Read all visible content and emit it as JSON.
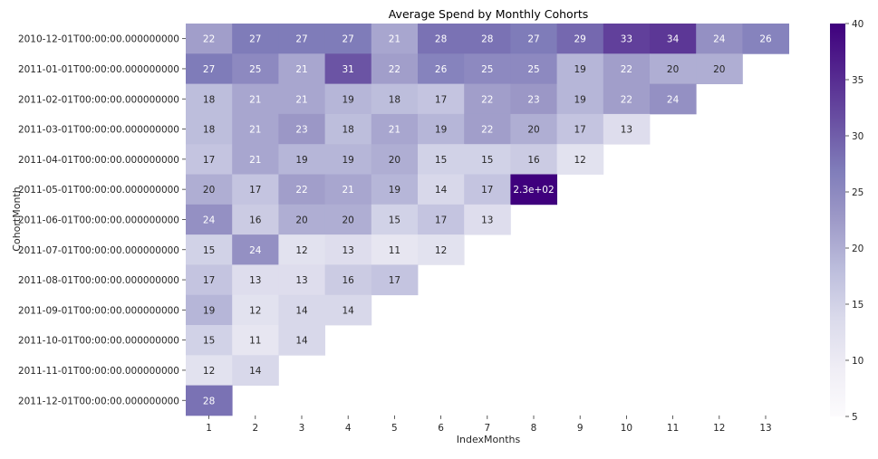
{
  "chart_data": {
    "type": "heatmap",
    "title": "Average Spend by Monthly Cohorts",
    "xlabel": "IndexMonths",
    "ylabel": "CohortMonth",
    "x_categories": [
      "1",
      "2",
      "3",
      "4",
      "5",
      "6",
      "7",
      "8",
      "9",
      "10",
      "11",
      "12",
      "13"
    ],
    "y_categories": [
      "2010-12-01T00:00:00.000000000",
      "2011-01-01T00:00:00.000000000",
      "2011-02-01T00:00:00.000000000",
      "2011-03-01T00:00:00.000000000",
      "2011-04-01T00:00:00.000000000",
      "2011-05-01T00:00:00.000000000",
      "2011-06-01T00:00:00.000000000",
      "2011-07-01T00:00:00.000000000",
      "2011-08-01T00:00:00.000000000",
      "2011-09-01T00:00:00.000000000",
      "2011-10-01T00:00:00.000000000",
      "2011-11-01T00:00:00.000000000",
      "2011-12-01T00:00:00.000000000"
    ],
    "values": [
      [
        22,
        27,
        27,
        27,
        21,
        28,
        28,
        27,
        29,
        33,
        34,
        24,
        26
      ],
      [
        27,
        25,
        21,
        31,
        22,
        26,
        25,
        25,
        19,
        22,
        20,
        20,
        null
      ],
      [
        18,
        21,
        21,
        19,
        18,
        17,
        22,
        23,
        19,
        22,
        24,
        null,
        null
      ],
      [
        18,
        21,
        23,
        18,
        21,
        19,
        22,
        20,
        17,
        13,
        null,
        null,
        null
      ],
      [
        17,
        21,
        19,
        19,
        20,
        15,
        15,
        16,
        12,
        null,
        null,
        null,
        null
      ],
      [
        20,
        17,
        22,
        21,
        19,
        14,
        17,
        230,
        null,
        null,
        null,
        null,
        null
      ],
      [
        24,
        16,
        20,
        20,
        15,
        17,
        13,
        null,
        null,
        null,
        null,
        null,
        null
      ],
      [
        15,
        24,
        12,
        13,
        11,
        12,
        null,
        null,
        null,
        null,
        null,
        null,
        null
      ],
      [
        17,
        13,
        13,
        16,
        17,
        null,
        null,
        null,
        null,
        null,
        null,
        null,
        null
      ],
      [
        19,
        12,
        14,
        14,
        null,
        null,
        null,
        null,
        null,
        null,
        null,
        null,
        null
      ],
      [
        15,
        11,
        14,
        null,
        null,
        null,
        null,
        null,
        null,
        null,
        null,
        null,
        null
      ],
      [
        12,
        14,
        null,
        null,
        null,
        null,
        null,
        null,
        null,
        null,
        null,
        null,
        null
      ],
      [
        28,
        null,
        null,
        null,
        null,
        null,
        null,
        null,
        null,
        null,
        null,
        null,
        null
      ]
    ],
    "cell_labels": [
      [
        "22",
        "27",
        "27",
        "27",
        "21",
        "28",
        "28",
        "27",
        "29",
        "33",
        "34",
        "24",
        "26"
      ],
      [
        "27",
        "25",
        "21",
        "31",
        "22",
        "26",
        "25",
        "25",
        "19",
        "22",
        "20",
        "20",
        ""
      ],
      [
        "18",
        "21",
        "21",
        "19",
        "18",
        "17",
        "22",
        "23",
        "19",
        "22",
        "24",
        "",
        ""
      ],
      [
        "18",
        "21",
        "23",
        "18",
        "21",
        "19",
        "22",
        "20",
        "17",
        "13",
        "",
        "",
        ""
      ],
      [
        "17",
        "21",
        "19",
        "19",
        "20",
        "15",
        "15",
        "16",
        "12",
        "",
        "",
        "",
        ""
      ],
      [
        "20",
        "17",
        "22",
        "21",
        "19",
        "14",
        "17",
        "2.3e+02",
        "",
        "",
        "",
        "",
        ""
      ],
      [
        "24",
        "16",
        "20",
        "20",
        "15",
        "17",
        "13",
        "",
        "",
        "",
        "",
        "",
        ""
      ],
      [
        "15",
        "24",
        "12",
        "13",
        "11",
        "12",
        "",
        "",
        "",
        "",
        "",
        "",
        ""
      ],
      [
        "17",
        "13",
        "13",
        "16",
        "17",
        "",
        "",
        "",
        "",
        "",
        "",
        "",
        ""
      ],
      [
        "19",
        "12",
        "14",
        "14",
        "",
        "",
        "",
        "",
        "",
        "",
        "",
        "",
        ""
      ],
      [
        "15",
        "11",
        "14",
        "",
        "",
        "",
        "",
        "",
        "",
        "",
        "",
        "",
        ""
      ],
      [
        "12",
        "14",
        "",
        "",
        "",
        "",
        "",
        "",
        "",
        "",
        "",
        "",
        ""
      ],
      [
        "28",
        "",
        "",
        "",
        "",
        "",
        "",
        "",
        "",
        "",
        "",
        "",
        ""
      ]
    ],
    "color_scale": {
      "name": "Purples",
      "vmin": 5,
      "vmax": 40,
      "stops": [
        "#fcfbfd",
        "#efedf5",
        "#dadaeb",
        "#bcbddc",
        "#9e9ac8",
        "#807dba",
        "#6a51a3",
        "#54278f",
        "#3f007d"
      ],
      "ticks": [
        5,
        10,
        15,
        20,
        25,
        30,
        35,
        40
      ]
    },
    "colorbar_position": "right",
    "grid": false
  }
}
